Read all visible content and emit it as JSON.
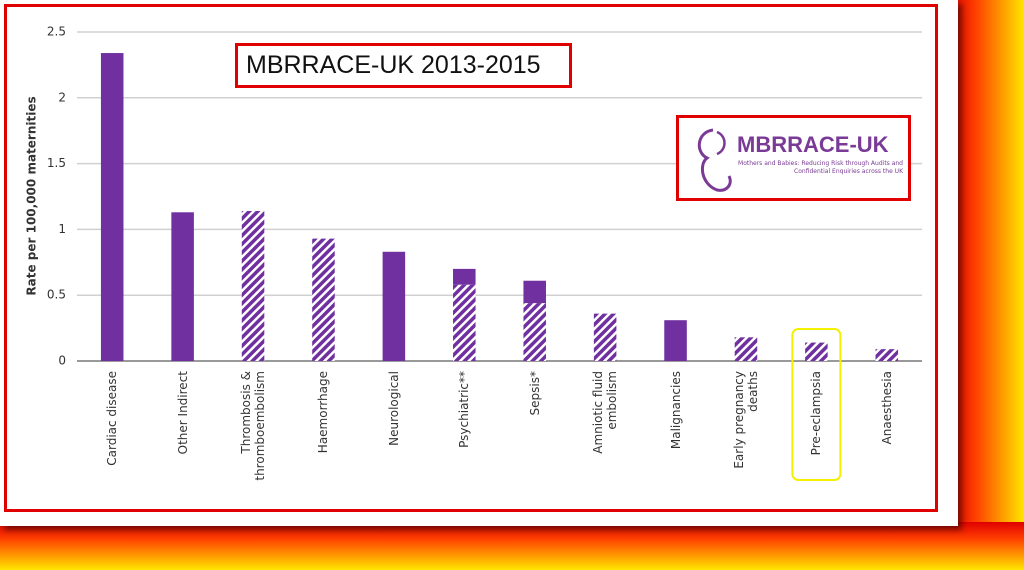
{
  "chart_data": {
    "type": "bar",
    "stacked": true,
    "title": "MBRRACE-UK 2013-2015",
    "logo": {
      "name": "MBRRACE-UK",
      "tagline": "Mothers and Babies: Reducing Risk through Audits and Confidential Enquiries across the UK"
    },
    "y_label": "Rate per 100,000 maternities",
    "categories": [
      "Cardiac disease",
      "Other Indirect",
      "Thrombosis & thromboembolism",
      "Haemorrhage",
      "Neurological",
      "Psychiatric**",
      "Sepsis*",
      "Amniotic fluid embolism",
      "Malignancies",
      "Early pregnancy deaths",
      "Pre-eclampsia",
      "Anaesthesia"
    ],
    "series": [
      {
        "color": "#7030a0",
        "pattern": "hatch",
        "values": [
          null,
          null,
          1.14,
          0.93,
          null,
          0.58,
          0.44,
          0.36,
          null,
          0.18,
          0.14,
          0.09
        ]
      },
      {
        "color": "#7030a0",
        "pattern": "solid",
        "values": [
          2.34,
          1.13,
          null,
          null,
          0.83,
          0.12,
          0.17,
          null,
          0.31,
          null,
          null,
          null
        ]
      }
    ],
    "ylim": [
      0,
      2.5
    ],
    "yticks": [
      0,
      0.5,
      1,
      1.5,
      2,
      2.5
    ],
    "grid": true,
    "highlight": {
      "index": 10,
      "color": "#f5ef00"
    }
  }
}
